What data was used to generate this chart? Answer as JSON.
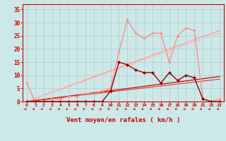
{
  "background_color": "#cce8e8",
  "grid_color": "#b0cccc",
  "xlabel": "Vent moyen/en rafales ( km/h )",
  "xlabel_color": "#cc0000",
  "xlabel_fontsize": 6.5,
  "xtick_color": "#cc0000",
  "ytick_color": "#cc0000",
  "xlim": [
    -0.5,
    23.5
  ],
  "ylim": [
    0,
    37
  ],
  "yticks": [
    0,
    5,
    10,
    15,
    20,
    25,
    30,
    35
  ],
  "xticks": [
    0,
    1,
    2,
    3,
    4,
    5,
    6,
    7,
    8,
    9,
    10,
    11,
    12,
    13,
    14,
    15,
    16,
    17,
    18,
    19,
    20,
    21,
    22,
    23
  ],
  "line_trend_dark1": {
    "x": [
      0,
      23
    ],
    "y": [
      0,
      9.5
    ],
    "color": "#cc0000",
    "linewidth": 0.9
  },
  "line_trend_dark2": {
    "x": [
      0,
      23
    ],
    "y": [
      0,
      8.5
    ],
    "color": "#dd3333",
    "linewidth": 0.8
  },
  "line_trend_pink1": {
    "x": [
      0,
      23
    ],
    "y": [
      0,
      27
    ],
    "color": "#ff9999",
    "linewidth": 0.9
  },
  "line_trend_pink2": {
    "x": [
      0,
      23
    ],
    "y": [
      0,
      26
    ],
    "color": "#ffbbbb",
    "linewidth": 0.8
  },
  "series_light": {
    "x": [
      0,
      1,
      2,
      3,
      4,
      5,
      6,
      7,
      8,
      9,
      10,
      11,
      12,
      13,
      14,
      15,
      16,
      17,
      18,
      19,
      20,
      21,
      22,
      23
    ],
    "y": [
      7,
      0,
      0,
      1,
      1,
      2,
      2,
      3,
      3,
      4,
      5,
      19,
      31,
      26,
      24,
      26,
      26,
      15,
      25,
      28,
      27,
      1,
      0,
      1
    ],
    "color": "#ff8888",
    "linewidth": 0.9,
    "markersize": 2.0
  },
  "series_dark": {
    "x": [
      0,
      1,
      2,
      3,
      4,
      5,
      6,
      7,
      8,
      9,
      10,
      11,
      12,
      13,
      14,
      15,
      16,
      17,
      18,
      19,
      20,
      21,
      22,
      23
    ],
    "y": [
      0,
      0,
      0,
      0,
      0,
      0,
      0,
      0,
      0,
      0,
      4,
      15,
      14,
      12,
      11,
      11,
      7,
      11,
      8,
      10,
      9,
      1,
      0,
      0
    ],
    "color": "#990000",
    "linewidth": 1.0,
    "markersize": 2.5
  },
  "arrow_angles_deg": [
    225,
    220,
    215,
    220,
    225,
    210,
    215,
    220,
    225,
    215,
    210,
    215,
    220,
    225,
    215,
    210,
    215,
    220,
    215,
    220,
    215,
    210,
    215,
    220
  ]
}
